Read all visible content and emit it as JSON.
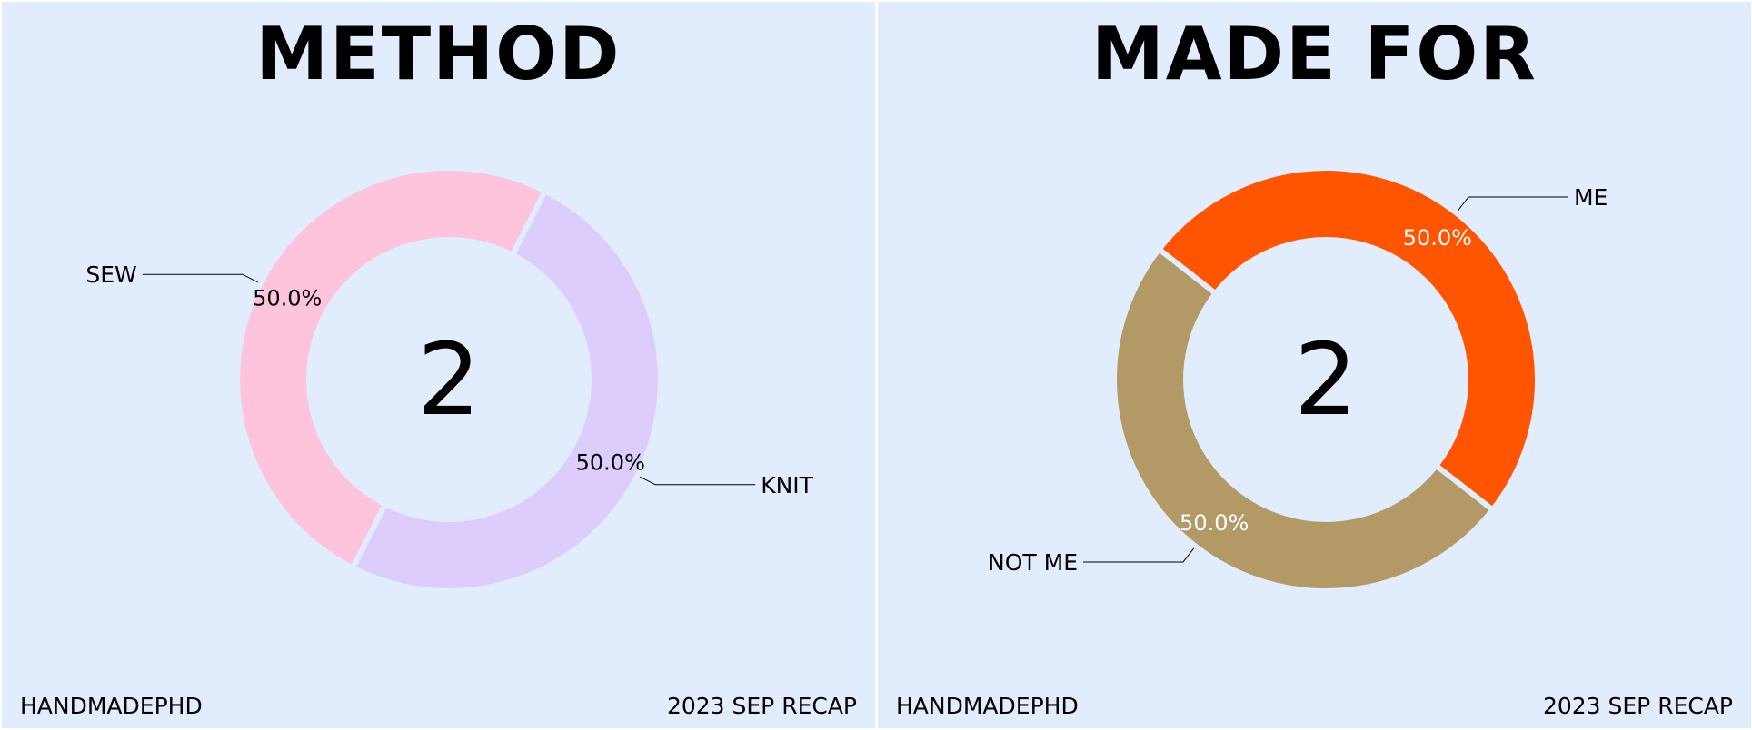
{
  "chart_data": [
    {
      "type": "pie",
      "title": "METHOD",
      "center_text": "2",
      "slices": [
        {
          "label": "KNIT",
          "percent": "50.0%",
          "value": 1,
          "color": "#dccdfd",
          "percent_color": "#000000"
        },
        {
          "label": "SEW",
          "percent": "50.0%",
          "value": 1,
          "color": "#fec4dd",
          "percent_color": "#000000"
        }
      ],
      "footer_left": "HANDMADEPHD",
      "footer_right": "2023 SEP RECAP"
    },
    {
      "type": "pie",
      "title": "MADE FOR",
      "center_text": "2",
      "slices": [
        {
          "label": "ME",
          "percent": "50.0%",
          "value": 1,
          "color": "#ff5500",
          "percent_color": "#ffffff"
        },
        {
          "label": "NOT ME",
          "percent": "50.0%",
          "value": 1,
          "color": "#b39966",
          "percent_color": "#ffffff"
        }
      ],
      "footer_left": "HANDMADEPHD",
      "footer_right": "2023 SEP RECAP"
    }
  ]
}
